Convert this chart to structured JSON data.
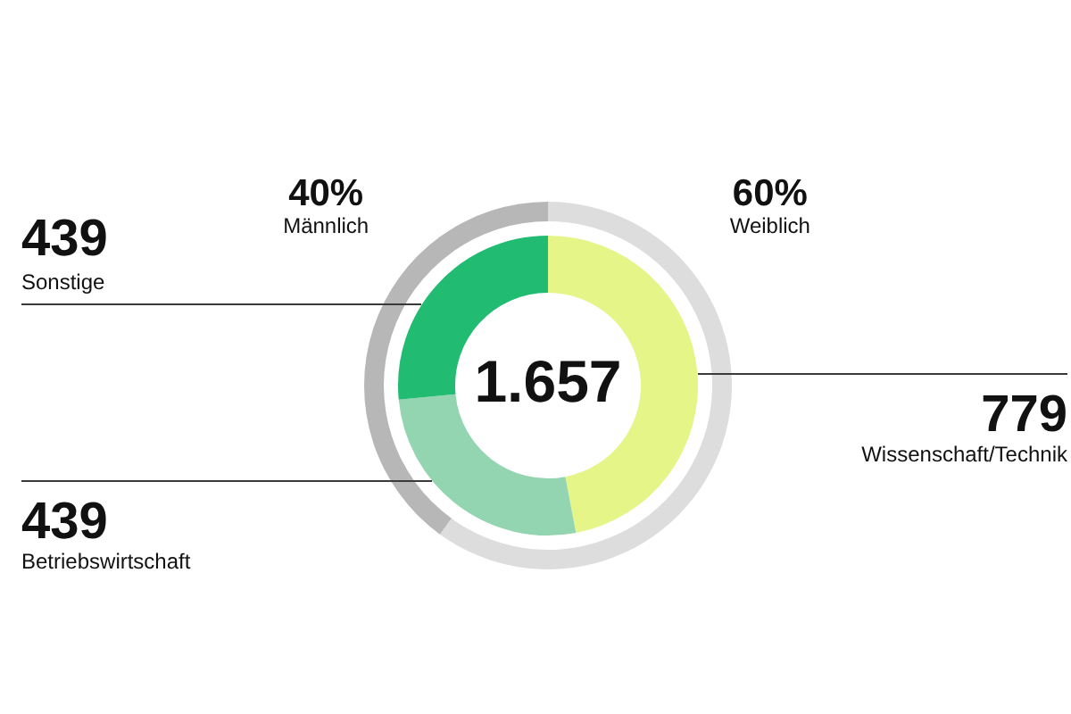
{
  "chart_data": [
    {
      "type": "donut",
      "categories": [
        "Wissenschaft/Technik",
        "Betriebswirtschaft",
        "Sonstige"
      ],
      "values": [
        779,
        439,
        439
      ],
      "colors": [
        "#e5f587",
        "#93d5b0",
        "#22bb72"
      ],
      "data_labels": true,
      "annotations": [
        "1.657"
      ]
    },
    {
      "type": "donut",
      "categories": [
        "Weiblich",
        "Männlich"
      ],
      "values": [
        60,
        40
      ],
      "colors": [
        "#dedddd",
        "#b8b7b8"
      ],
      "value_labels": [
        "60%",
        "40%"
      ]
    }
  ]
}
